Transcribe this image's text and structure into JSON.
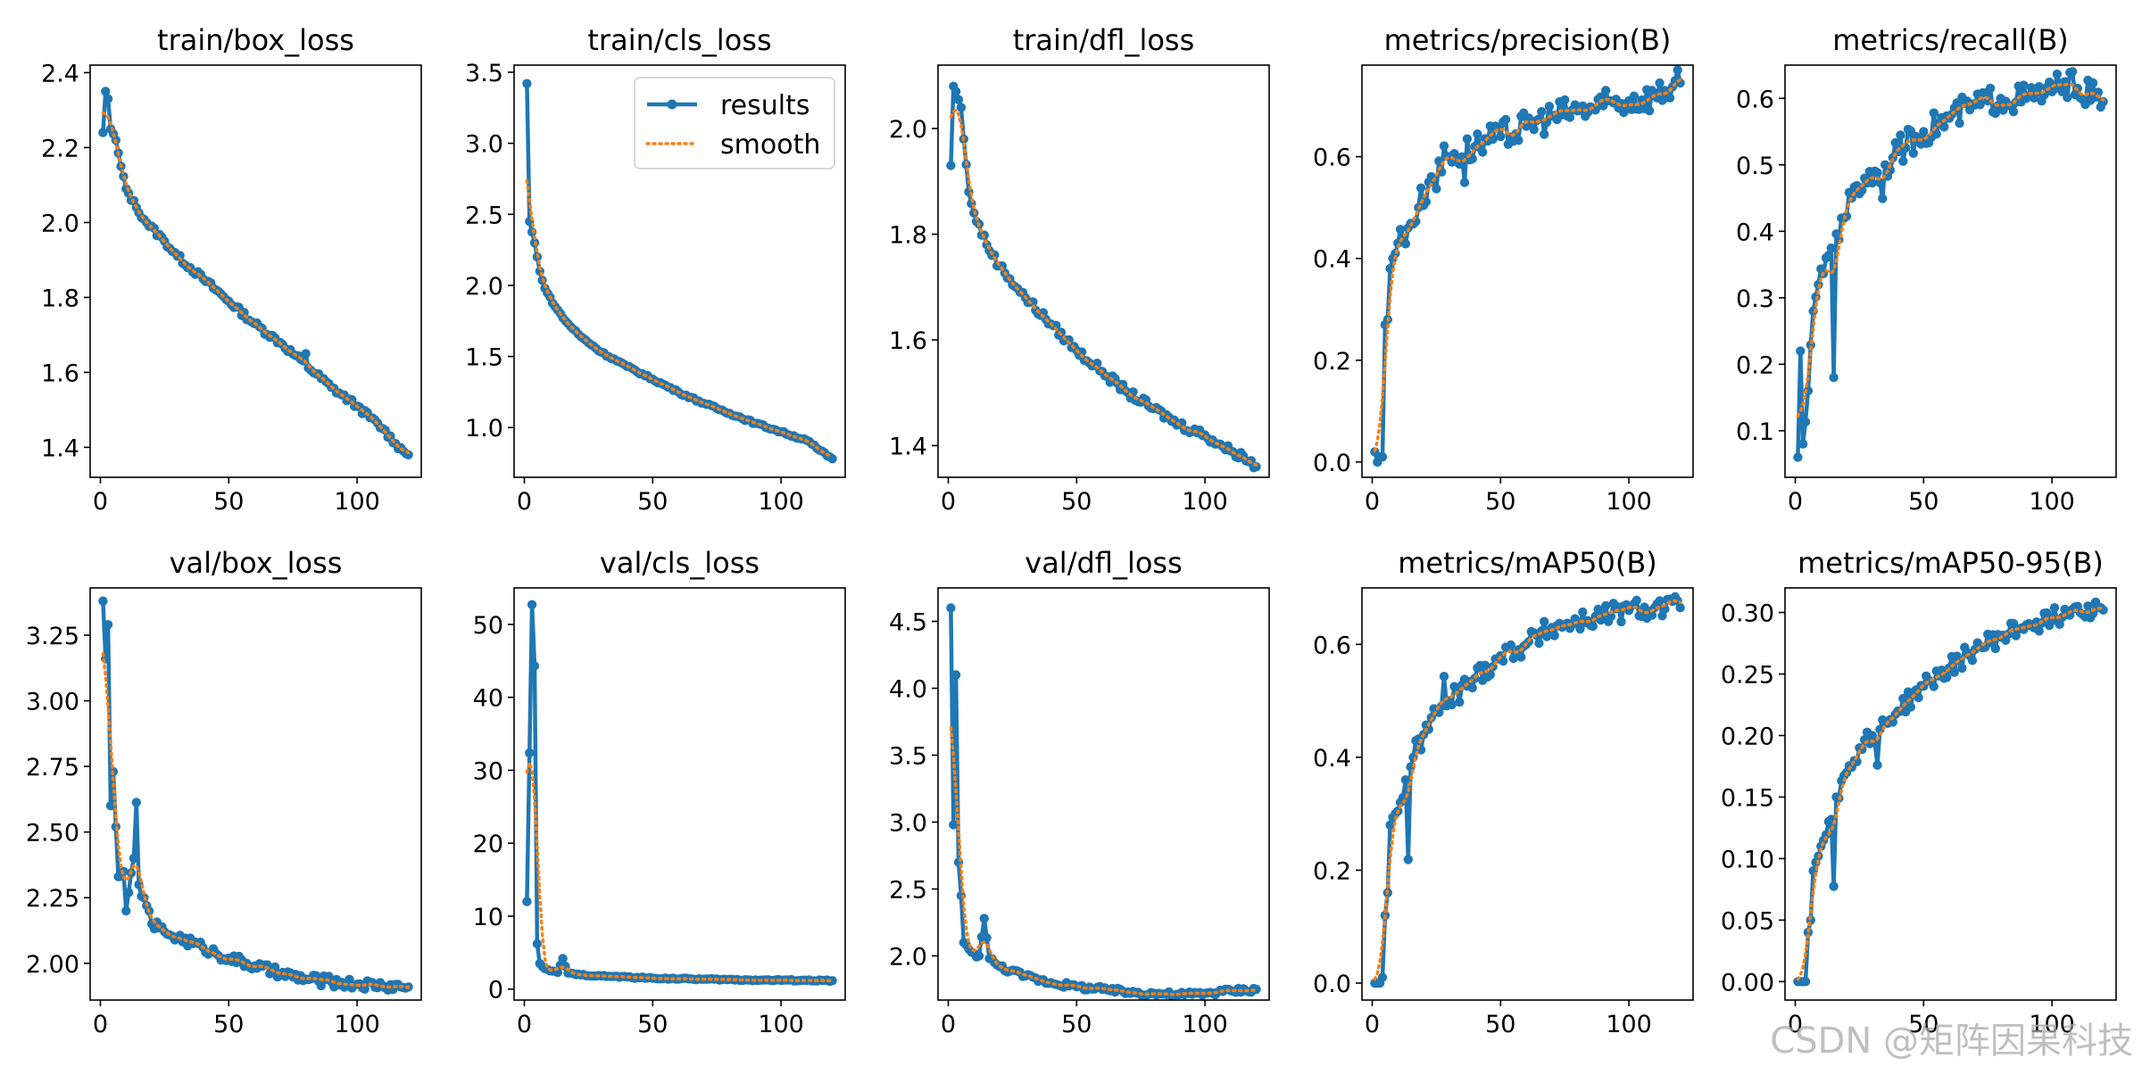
{
  "legend": {
    "results": "results",
    "smooth": "smooth"
  },
  "colors": {
    "results": "#1f77b4",
    "smooth": "#ff7f0e"
  },
  "watermark": "CSDN @矩阵因果科技",
  "chart_data": [
    {
      "type": "line",
      "title": "train/box_loss",
      "xlim": [
        -4,
        125
      ],
      "ylim": [
        1.32,
        2.42
      ],
      "xticks": [
        0,
        50,
        100
      ],
      "yticks": [
        1.4,
        1.6,
        1.8,
        2.0,
        2.2,
        2.4
      ],
      "ytick_labels": [
        "1.4",
        "1.6",
        "1.8",
        "2.0",
        "2.2",
        "2.4"
      ],
      "legend": false,
      "pts": [
        [
          1,
          2.24
        ],
        [
          2,
          2.35
        ],
        [
          3,
          2.33
        ],
        [
          4,
          2.25
        ],
        [
          6,
          2.22
        ],
        [
          8,
          2.15
        ],
        [
          10,
          2.09
        ],
        [
          14,
          2.04
        ],
        [
          18,
          2.0
        ],
        [
          25,
          1.95
        ],
        [
          30,
          1.91
        ],
        [
          40,
          1.85
        ],
        [
          50,
          1.79
        ],
        [
          60,
          1.73
        ],
        [
          70,
          1.68
        ],
        [
          80,
          1.62
        ],
        [
          90,
          1.56
        ],
        [
          100,
          1.51
        ],
        [
          110,
          1.45
        ],
        [
          115,
          1.41
        ],
        [
          118,
          1.39
        ],
        [
          120,
          1.38
        ]
      ],
      "series": [
        {
          "name": "results",
          "noise": 0.008,
          "spikes": [
            [
              80,
              0.03
            ]
          ]
        },
        {
          "name": "smooth"
        }
      ]
    },
    {
      "type": "line",
      "title": "train/cls_loss",
      "xlim": [
        -4,
        125
      ],
      "ylim": [
        0.65,
        3.55
      ],
      "xticks": [
        0,
        50,
        100
      ],
      "yticks": [
        1.0,
        1.5,
        2.0,
        2.5,
        3.0,
        3.5
      ],
      "ytick_labels": [
        "1.0",
        "1.5",
        "2.0",
        "2.5",
        "3.0",
        "3.5"
      ],
      "legend": true,
      "pts": [
        [
          1,
          3.42
        ],
        [
          2,
          2.45
        ],
        [
          4,
          2.3
        ],
        [
          6,
          2.1
        ],
        [
          8,
          1.98
        ],
        [
          12,
          1.85
        ],
        [
          16,
          1.75
        ],
        [
          22,
          1.64
        ],
        [
          30,
          1.53
        ],
        [
          40,
          1.43
        ],
        [
          50,
          1.34
        ],
        [
          60,
          1.25
        ],
        [
          70,
          1.17
        ],
        [
          80,
          1.1
        ],
        [
          90,
          1.03
        ],
        [
          100,
          0.97
        ],
        [
          110,
          0.91
        ],
        [
          115,
          0.84
        ],
        [
          120,
          0.78
        ]
      ],
      "series": [
        {
          "name": "results",
          "noise": 0.008,
          "spikes": []
        },
        {
          "name": "smooth"
        }
      ]
    },
    {
      "type": "line",
      "title": "train/dfl_loss",
      "xlim": [
        -4,
        125
      ],
      "ylim": [
        1.34,
        2.12
      ],
      "xticks": [
        0,
        50,
        100
      ],
      "yticks": [
        1.4,
        1.6,
        1.8,
        2.0
      ],
      "ytick_labels": [
        "1.4",
        "1.6",
        "1.8",
        "2.0"
      ],
      "legend": false,
      "pts": [
        [
          1,
          1.93
        ],
        [
          2,
          2.08
        ],
        [
          3,
          2.07
        ],
        [
          5,
          2.04
        ],
        [
          6,
          1.98
        ],
        [
          8,
          1.88
        ],
        [
          10,
          1.84
        ],
        [
          15,
          1.78
        ],
        [
          20,
          1.74
        ],
        [
          30,
          1.68
        ],
        [
          40,
          1.63
        ],
        [
          50,
          1.58
        ],
        [
          60,
          1.54
        ],
        [
          70,
          1.5
        ],
        [
          80,
          1.47
        ],
        [
          90,
          1.44
        ],
        [
          100,
          1.42
        ],
        [
          110,
          1.39
        ],
        [
          115,
          1.38
        ],
        [
          120,
          1.36
        ]
      ],
      "series": [
        {
          "name": "results",
          "noise": 0.008,
          "spikes": []
        },
        {
          "name": "smooth"
        }
      ]
    },
    {
      "type": "line",
      "title": "metrics/precision(B)",
      "xlim": [
        -4,
        125
      ],
      "ylim": [
        -0.03,
        0.78
      ],
      "xticks": [
        0,
        50,
        100
      ],
      "yticks": [
        0.0,
        0.2,
        0.4,
        0.6
      ],
      "ytick_labels": [
        "0.0",
        "0.2",
        "0.4",
        "0.6"
      ],
      "legend": false,
      "pts": [
        [
          1,
          0.02
        ],
        [
          2,
          0.0
        ],
        [
          3,
          0.01
        ],
        [
          4,
          0.01
        ],
        [
          5,
          0.27
        ],
        [
          6,
          0.28
        ],
        [
          7,
          0.38
        ],
        [
          8,
          0.4
        ],
        [
          10,
          0.43
        ],
        [
          14,
          0.46
        ],
        [
          18,
          0.5
        ],
        [
          22,
          0.55
        ],
        [
          27,
          0.57
        ],
        [
          30,
          0.6
        ],
        [
          40,
          0.62
        ],
        [
          50,
          0.64
        ],
        [
          60,
          0.66
        ],
        [
          70,
          0.68
        ],
        [
          80,
          0.69
        ],
        [
          90,
          0.7
        ],
        [
          100,
          0.71
        ],
        [
          110,
          0.72
        ],
        [
          120,
          0.745
        ]
      ],
      "series": [
        {
          "name": "results",
          "noise": 0.03,
          "spikes": [
            [
              28,
              0.05
            ],
            [
              36,
              -0.05
            ]
          ]
        },
        {
          "name": "smooth"
        }
      ]
    },
    {
      "type": "line",
      "title": "metrics/recall(B)",
      "xlim": [
        -4,
        125
      ],
      "ylim": [
        0.03,
        0.65
      ],
      "xticks": [
        0,
        50,
        100
      ],
      "yticks": [
        0.1,
        0.2,
        0.3,
        0.4,
        0.5,
        0.6
      ],
      "ytick_labels": [
        "0.1",
        "0.2",
        "0.3",
        "0.4",
        "0.5",
        "0.6"
      ],
      "legend": false,
      "pts": [
        [
          1,
          0.06
        ],
        [
          2,
          0.22
        ],
        [
          3,
          0.08
        ],
        [
          5,
          0.16
        ],
        [
          7,
          0.28
        ],
        [
          9,
          0.32
        ],
        [
          12,
          0.36
        ],
        [
          15,
          0.38
        ],
        [
          18,
          0.42
        ],
        [
          22,
          0.45
        ],
        [
          27,
          0.48
        ],
        [
          35,
          0.5
        ],
        [
          40,
          0.52
        ],
        [
          50,
          0.55
        ],
        [
          60,
          0.57
        ],
        [
          70,
          0.59
        ],
        [
          80,
          0.6
        ],
        [
          90,
          0.6
        ],
        [
          100,
          0.61
        ],
        [
          105,
          0.625
        ],
        [
          110,
          0.615
        ],
        [
          120,
          0.595
        ]
      ],
      "series": [
        {
          "name": "results",
          "noise": 0.022,
          "spikes": [
            [
              15,
              -0.2
            ],
            [
              34,
              -0.06
            ]
          ]
        },
        {
          "name": "smooth"
        }
      ]
    },
    {
      "type": "line",
      "title": "val/box_loss",
      "xlim": [
        -4,
        125
      ],
      "ylim": [
        1.86,
        3.43
      ],
      "xticks": [
        0,
        50,
        100
      ],
      "yticks": [
        2.0,
        2.25,
        2.5,
        2.75,
        3.0,
        3.25
      ],
      "ytick_labels": [
        "2.00",
        "2.25",
        "2.50",
        "2.75",
        "3.00",
        "3.25"
      ],
      "legend": false,
      "pts": [
        [
          1,
          3.38
        ],
        [
          2,
          3.16
        ],
        [
          3,
          3.29
        ],
        [
          4,
          2.6
        ],
        [
          5,
          2.73
        ],
        [
          6,
          2.52
        ],
        [
          7,
          2.33
        ],
        [
          9,
          2.35
        ],
        [
          11,
          2.27
        ],
        [
          13,
          2.4
        ],
        [
          15,
          2.3
        ],
        [
          18,
          2.22
        ],
        [
          20,
          2.15
        ],
        [
          25,
          2.12
        ],
        [
          30,
          2.1
        ],
        [
          40,
          2.06
        ],
        [
          50,
          2.02
        ],
        [
          60,
          1.99
        ],
        [
          70,
          1.96
        ],
        [
          80,
          1.94
        ],
        [
          90,
          1.93
        ],
        [
          100,
          1.92
        ],
        [
          110,
          1.915
        ],
        [
          120,
          1.91
        ]
      ],
      "series": [
        {
          "name": "results",
          "noise": 0.02,
          "spikes": [
            [
              14,
              0.25
            ],
            [
              10,
              -0.12
            ]
          ]
        },
        {
          "name": "smooth"
        }
      ]
    },
    {
      "type": "line",
      "title": "val/cls_loss",
      "xlim": [
        -4,
        125
      ],
      "ylim": [
        -1.5,
        55
      ],
      "xticks": [
        0,
        50,
        100
      ],
      "yticks": [
        0,
        10,
        20,
        30,
        40,
        50
      ],
      "ytick_labels": [
        "0",
        "10",
        "20",
        "30",
        "40",
        "50"
      ],
      "legend": false,
      "pts": [
        [
          1,
          12
        ],
        [
          3,
          52.7
        ],
        [
          4,
          44.3
        ],
        [
          5,
          6.2
        ],
        [
          6,
          3.5
        ],
        [
          8,
          2.8
        ],
        [
          10,
          2.5
        ],
        [
          13,
          2.3
        ],
        [
          15,
          4.2
        ],
        [
          17,
          2.2
        ],
        [
          20,
          2.0
        ],
        [
          30,
          1.8
        ],
        [
          50,
          1.5
        ],
        [
          70,
          1.35
        ],
        [
          90,
          1.25
        ],
        [
          110,
          1.2
        ],
        [
          120,
          1.15
        ]
      ],
      "series": [
        {
          "name": "results",
          "noise": 0.1,
          "spikes": []
        },
        {
          "name": "smooth"
        }
      ]
    },
    {
      "type": "line",
      "title": "val/dfl_loss",
      "xlim": [
        -4,
        125
      ],
      "ylim": [
        1.67,
        4.75
      ],
      "xticks": [
        0,
        50,
        100
      ],
      "yticks": [
        2.0,
        2.5,
        3.0,
        3.5,
        4.0,
        4.5
      ],
      "ytick_labels": [
        "2.0",
        "2.5",
        "3.0",
        "3.5",
        "4.0",
        "4.5"
      ],
      "legend": false,
      "pts": [
        [
          1,
          4.6
        ],
        [
          2,
          2.98
        ],
        [
          3,
          4.1
        ],
        [
          4,
          2.7
        ],
        [
          5,
          2.45
        ],
        [
          6,
          2.1
        ],
        [
          8,
          2.05
        ],
        [
          10,
          2.02
        ],
        [
          12,
          2.0
        ],
        [
          14,
          2.28
        ],
        [
          16,
          1.98
        ],
        [
          20,
          1.92
        ],
        [
          30,
          1.85
        ],
        [
          40,
          1.8
        ],
        [
          50,
          1.77
        ],
        [
          60,
          1.75
        ],
        [
          70,
          1.73
        ],
        [
          80,
          1.72
        ],
        [
          90,
          1.71
        ],
        [
          100,
          1.72
        ],
        [
          110,
          1.74
        ],
        [
          120,
          1.75
        ]
      ],
      "series": [
        {
          "name": "results",
          "noise": 0.02,
          "spikes": []
        },
        {
          "name": "smooth"
        }
      ]
    },
    {
      "type": "line",
      "title": "metrics/mAP50(B)",
      "xlim": [
        -4,
        125
      ],
      "ylim": [
        -0.03,
        0.7
      ],
      "xticks": [
        0,
        50,
        100
      ],
      "yticks": [
        0.0,
        0.2,
        0.4,
        0.6
      ],
      "ytick_labels": [
        "0.0",
        "0.2",
        "0.4",
        "0.6"
      ],
      "legend": false,
      "pts": [
        [
          1,
          0.0
        ],
        [
          2,
          0.0
        ],
        [
          3,
          0.0
        ],
        [
          4,
          0.01
        ],
        [
          5,
          0.12
        ],
        [
          6,
          0.16
        ],
        [
          7,
          0.28
        ],
        [
          9,
          0.3
        ],
        [
          11,
          0.32
        ],
        [
          13,
          0.36
        ],
        [
          16,
          0.4
        ],
        [
          20,
          0.44
        ],
        [
          25,
          0.48
        ],
        [
          30,
          0.5
        ],
        [
          40,
          0.54
        ],
        [
          50,
          0.58
        ],
        [
          60,
          0.6
        ],
        [
          70,
          0.63
        ],
        [
          80,
          0.64
        ],
        [
          90,
          0.65
        ],
        [
          100,
          0.66
        ],
        [
          110,
          0.665
        ],
        [
          120,
          0.665
        ]
      ],
      "series": [
        {
          "name": "results",
          "noise": 0.02,
          "spikes": [
            [
              14,
              -0.15
            ],
            [
              28,
              0.04
            ]
          ]
        },
        {
          "name": "smooth"
        }
      ]
    },
    {
      "type": "line",
      "title": "metrics/mAP50-95(B)",
      "xlim": [
        -4,
        125
      ],
      "ylim": [
        -0.015,
        0.32
      ],
      "xticks": [
        0,
        50,
        100
      ],
      "yticks": [
        0.0,
        0.05,
        0.1,
        0.15,
        0.2,
        0.25,
        0.3
      ],
      "ytick_labels": [
        "0.00",
        "0.05",
        "0.10",
        "0.15",
        "0.20",
        "0.25",
        "0.30"
      ],
      "legend": false,
      "pts": [
        [
          1,
          0.0
        ],
        [
          2,
          0.0
        ],
        [
          3,
          0.0
        ],
        [
          4,
          0.0
        ],
        [
          5,
          0.04
        ],
        [
          6,
          0.05
        ],
        [
          7,
          0.09
        ],
        [
          10,
          0.11
        ],
        [
          13,
          0.13
        ],
        [
          16,
          0.15
        ],
        [
          20,
          0.17
        ],
        [
          25,
          0.19
        ],
        [
          30,
          0.2
        ],
        [
          40,
          0.22
        ],
        [
          50,
          0.24
        ],
        [
          60,
          0.255
        ],
        [
          70,
          0.27
        ],
        [
          80,
          0.28
        ],
        [
          90,
          0.29
        ],
        [
          100,
          0.295
        ],
        [
          110,
          0.305
        ],
        [
          120,
          0.302
        ]
      ],
      "series": [
        {
          "name": "results",
          "noise": 0.008,
          "spikes": [
            [
              15,
              -0.06
            ],
            [
              32,
              -0.03
            ]
          ]
        },
        {
          "name": "smooth"
        }
      ]
    }
  ]
}
